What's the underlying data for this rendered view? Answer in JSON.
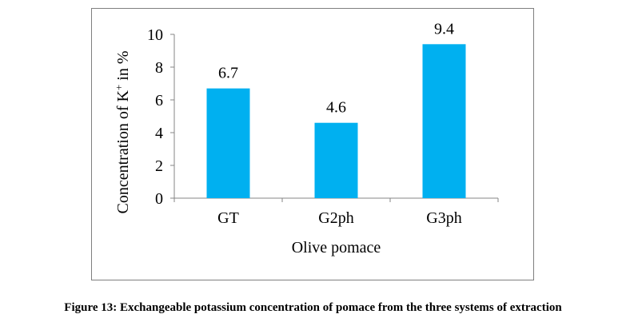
{
  "chart_data": {
    "type": "bar",
    "categories": [
      "GT",
      "G2ph",
      "G3ph"
    ],
    "values": [
      6.7,
      4.6,
      9.4
    ],
    "data_labels": [
      "6.7",
      "4.6",
      "9.4"
    ],
    "xlabel": "Olive pomace",
    "ylabel_prefix": "Concentration of K",
    "ylabel_sup": "+",
    "ylabel_suffix": " in %",
    "ylim": [
      0,
      10
    ],
    "yticks": [
      0,
      2,
      4,
      6,
      8,
      10
    ],
    "bar_color": "#00B0F0",
    "grid": false,
    "legend": "none"
  },
  "caption": "Figure 13: Exchangeable potassium concentration of pomace from the three systems of extraction"
}
